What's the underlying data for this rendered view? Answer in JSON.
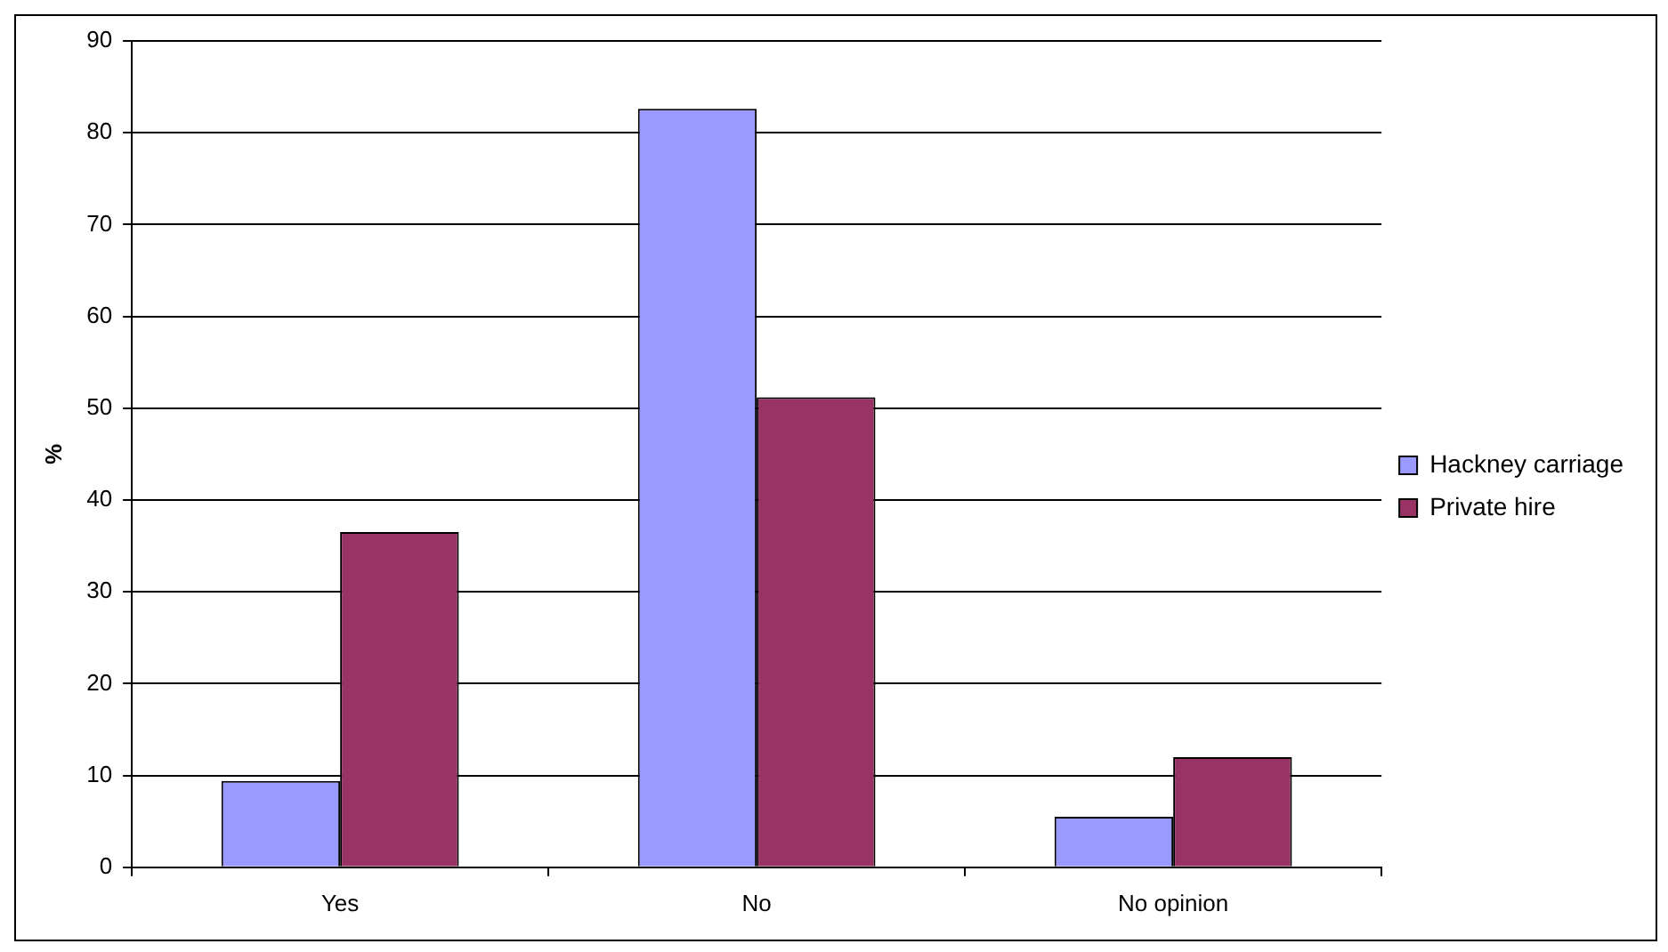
{
  "chart_data": {
    "type": "bar",
    "ylabel": "%",
    "categories": [
      "Yes",
      "No",
      "No opinion"
    ],
    "series": [
      {
        "name": "Hackney carriage",
        "color": "#9999ff",
        "values": [
          9.4,
          82.6,
          5.5
        ]
      },
      {
        "name": "Private hire",
        "color": "#993366",
        "values": [
          36.5,
          51.2,
          12.0
        ]
      }
    ],
    "ylim": [
      0,
      90
    ],
    "yticks": [
      0,
      10,
      20,
      30,
      40,
      50,
      60,
      70,
      80,
      90
    ],
    "grid": "y",
    "legend": "right"
  }
}
